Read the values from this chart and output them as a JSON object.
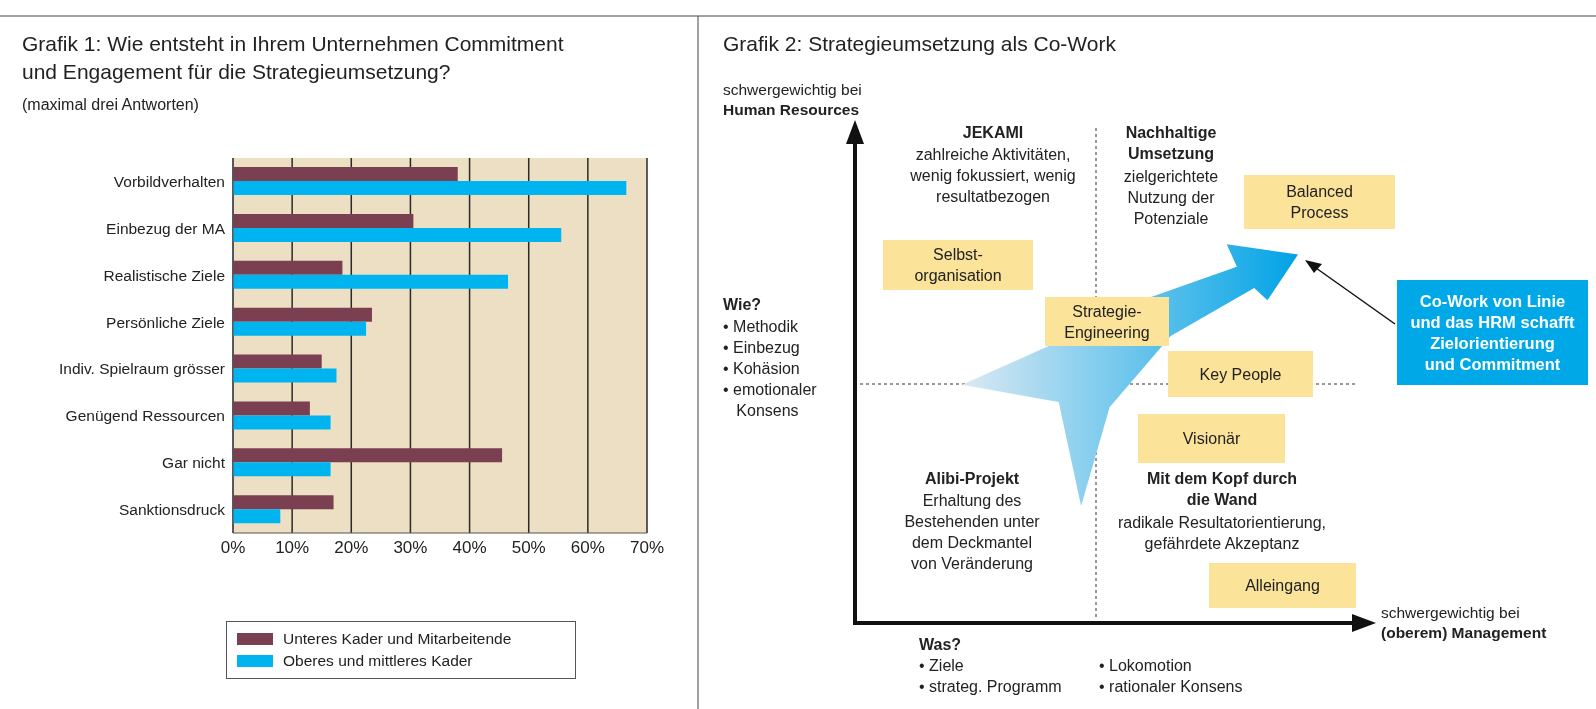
{
  "chart_data": [
    {
      "type": "bar",
      "orientation": "horizontal",
      "title": "Grafik 1: Wie entsteht in Ihrem Unternehmen Commitment\nund Engagement für die Strategieumsetzung?",
      "subtitle": "(maximal drei Antworten)",
      "categories": [
        "Vorbildverhalten",
        "Einbezug der MA",
        "Realistische Ziele",
        "Persönliche Ziele",
        "Indiv. Spielraum grösser",
        "Genügend Ressourcen",
        "Gar nicht",
        "Sanktionsdruck"
      ],
      "series": [
        {
          "name": "Unteres Kader und Mitarbeitende",
          "color": "#7b3f52",
          "values": [
            38,
            30.5,
            18.5,
            23.5,
            15,
            13,
            45.5,
            17
          ]
        },
        {
          "name": "Oberes und mittleres Kader",
          "color": "#00b5ef",
          "values": [
            66.5,
            55.5,
            46.5,
            22.5,
            17.5,
            16.5,
            16.5,
            8
          ]
        }
      ],
      "xlim": [
        0,
        70
      ],
      "xticks": [
        {
          "value": 0,
          "label": "0%"
        },
        {
          "value": 10,
          "label": "10%"
        },
        {
          "value": 20,
          "label": "20%"
        },
        {
          "value": 30,
          "label": "30%"
        },
        {
          "value": 40,
          "label": "40%"
        },
        {
          "value": 50,
          "label": "50%"
        },
        {
          "value": 60,
          "label": "60%"
        },
        {
          "value": 70,
          "label": "70%"
        }
      ],
      "grid": "x",
      "legend": "bottom"
    },
    {
      "type": "other",
      "title": "Grafik 2: Strategieumsetzung als Co-Work",
      "ylabel": "schwergewichtig bei\nHuman Resources",
      "xlabel": "schwergewichtig bei\n(oberem) Management",
      "annotations": [
        "JEKAMI",
        "zahlreiche Aktivitäten,\nwenig fokussiert, wenig\nresultatbezogen",
        "Nachhaltige\nUmsetzung",
        "zielgerichtete\nNutzung der\nPotenziale",
        "Alibi-Projekt",
        "Erhaltung des\nBestehenden unter\ndem Deckmantel\nvon Veränderung",
        "Mit dem Kopf durch\ndie Wand",
        "radikale Resultatorientierung,\ngefährdete Akzeptanz",
        "Balanced\nProcess",
        "Selbst-\norganisation",
        "Strategie-\nEngineering",
        "Key People",
        "Visionär",
        "Alleingang",
        "Co-Work von Linie\nund das HRM schafft\nZielorientierung\nund Commitment",
        "Wie?",
        "• Methodik\n• Einbezug\n• Kohäsion\n• emotionaler\n   Konsens",
        "Was?",
        "• Ziele\n• strateg. Programm",
        "• Lokomotion\n• rationaler Konsens"
      ]
    }
  ]
}
